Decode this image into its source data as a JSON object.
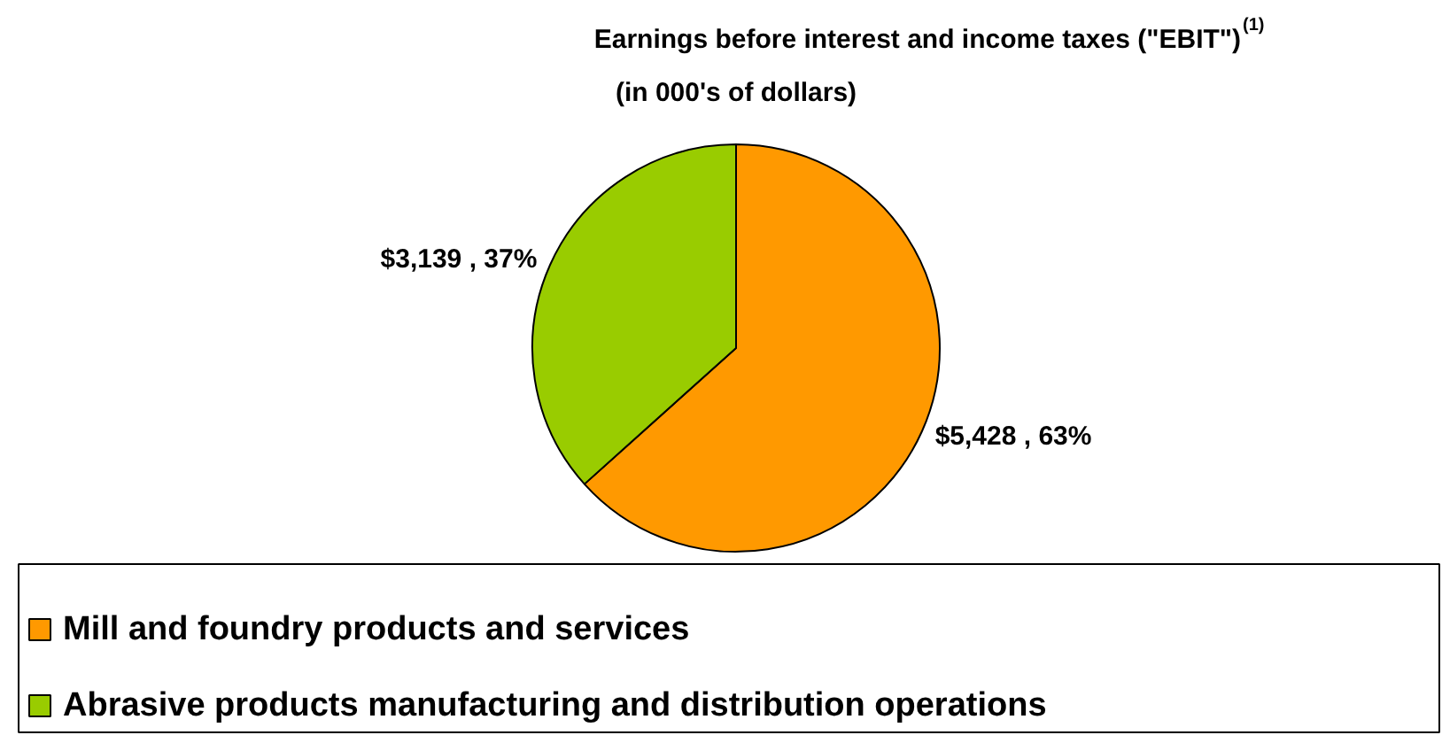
{
  "chart_data": {
    "type": "pie",
    "title": "Earnings before interest and income taxes (\"EBIT\")$^{(1)}$",
    "subtitle": "(in 000's of dollars)",
    "categories": [
      "Mill and foundry products and services",
      "Abrasive products manufacturing and distribution operations"
    ],
    "values": [
      5428,
      3139
    ],
    "colors": [
      "#ff9900",
      "#99cc00"
    ],
    "value_labels": [
      "$5,428 , 63%",
      "$3,139 , 37%"
    ],
    "legend": "bottom"
  }
}
